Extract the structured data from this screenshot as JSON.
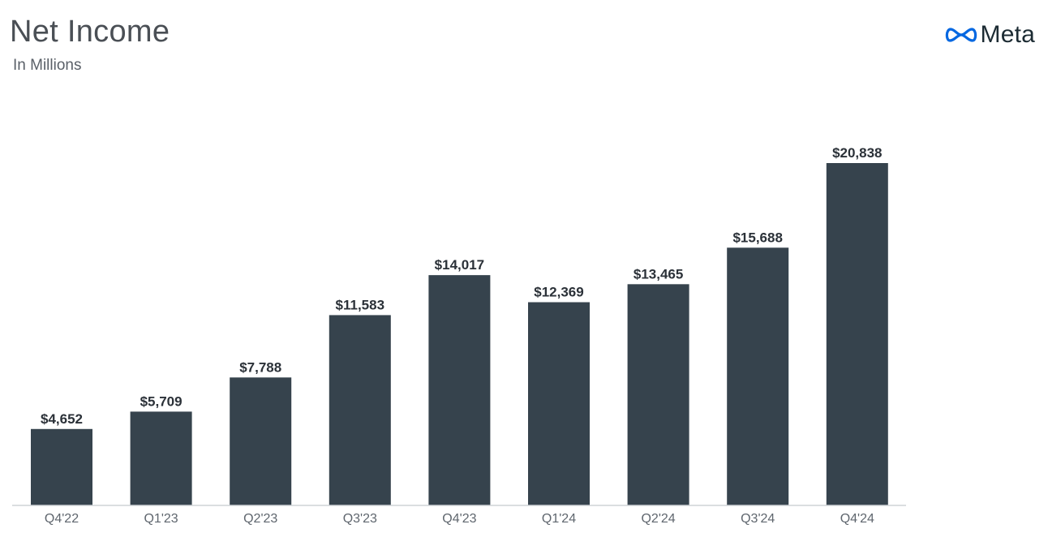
{
  "header": {
    "title": "Net Income",
    "subtitle": "In Millions"
  },
  "brand": {
    "name": "Meta",
    "logo_icon": "meta-infinity-icon",
    "logo_color": "#0668e1"
  },
  "colors": {
    "bar": "#36434d",
    "axis": "#cfd3d6"
  },
  "chart_data": {
    "type": "bar",
    "title": "Net Income",
    "subtitle": "In Millions",
    "xlabel": "",
    "ylabel": "",
    "categories": [
      "Q4'22",
      "Q1'23",
      "Q2'23",
      "Q3'23",
      "Q4'23",
      "Q1'24",
      "Q2'24",
      "Q3'24",
      "Q4'24"
    ],
    "values": [
      4652,
      5709,
      7788,
      11583,
      14017,
      12369,
      13465,
      15688,
      20838
    ],
    "value_labels": [
      "$4,652",
      "$5,709",
      "$7,788",
      "$11,583",
      "$14,017",
      "$12,369",
      "$13,465",
      "$15,688",
      "$20,838"
    ],
    "ylim": [
      0,
      20838
    ],
    "grid": false,
    "legend": "none"
  }
}
